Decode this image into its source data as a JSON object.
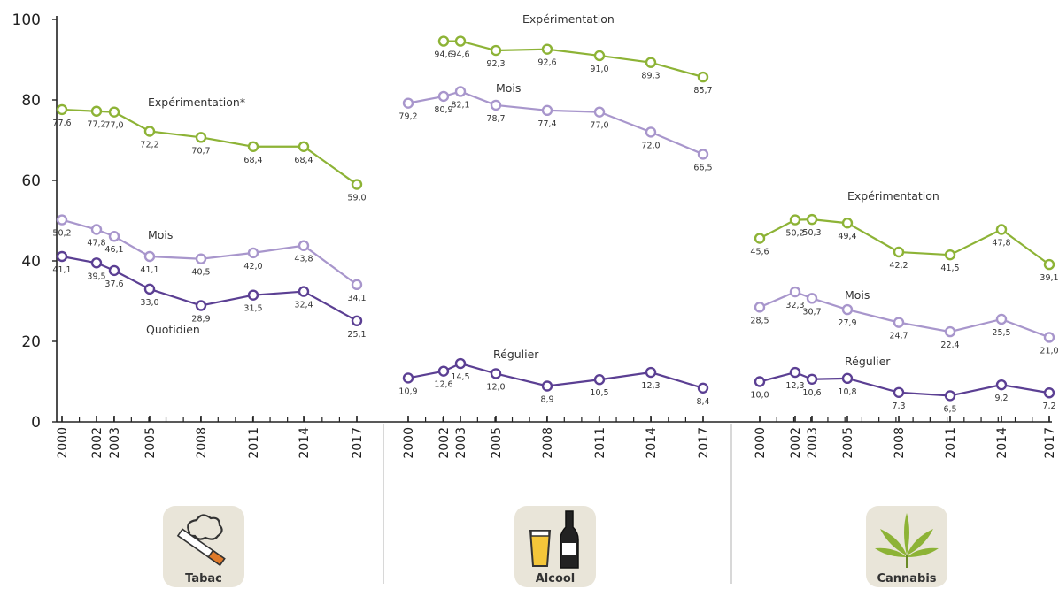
{
  "chart_data": {
    "type": "line",
    "ylim": [
      0,
      100
    ],
    "yticks": [
      0,
      20,
      40,
      60,
      80,
      100
    ],
    "x": [
      "2000",
      "2002",
      "2003",
      "2005",
      "2008",
      "2011",
      "2014",
      "2017"
    ],
    "colors": {
      "green": "#8db336",
      "lightpurple": "#a896cc",
      "darkpurple": "#5b3f93"
    },
    "panels": [
      {
        "category": "Tabac",
        "icon": "cigarette-icon",
        "series": [
          {
            "name": "Expérimentation*",
            "color": "green",
            "values": [
              77.6,
              77.2,
              77.0,
              72.2,
              70.7,
              68.4,
              68.4,
              59.0
            ],
            "labels": [
              "77,6",
              "77,2",
              "77,0",
              "72,2",
              "70,7",
              "68,4",
              "68,4",
              "59,0"
            ]
          },
          {
            "name": "Mois",
            "color": "lightpurple",
            "values": [
              50.2,
              47.8,
              46.1,
              41.1,
              40.5,
              42.0,
              43.8,
              34.1
            ],
            "labels": [
              "50,2",
              "47,8",
              "46,1",
              "41,1",
              "40,5",
              "42,0",
              "43,8",
              "34,1"
            ]
          },
          {
            "name": "Quotidien",
            "color": "darkpurple",
            "values": [
              41.1,
              39.5,
              37.6,
              33.0,
              28.9,
              31.5,
              32.4,
              25.1
            ],
            "labels": [
              "41,1",
              "39,5",
              "37,6",
              "33,0",
              "28,9",
              "31,5",
              "32,4",
              "25,1"
            ]
          }
        ]
      },
      {
        "category": "Alcool",
        "icon": "beer-bottle-icon",
        "series": [
          {
            "name": "Expérimentation",
            "color": "green",
            "values": [
              null,
              94.6,
              94.6,
              92.3,
              92.6,
              91.0,
              89.3,
              85.7
            ],
            "labels": [
              "",
              "94,6",
              "94,6",
              "92,3",
              "92,6",
              "91,0",
              "89,3",
              "85,7"
            ]
          },
          {
            "name": "Mois",
            "color": "lightpurple",
            "values": [
              79.2,
              80.9,
              82.1,
              78.7,
              77.4,
              77.0,
              72.0,
              66.5
            ],
            "labels": [
              "79,2",
              "80,9",
              "82,1",
              "78,7",
              "77,4",
              "77,0",
              "72,0",
              "66,5"
            ]
          },
          {
            "name": "Régulier",
            "color": "darkpurple",
            "values": [
              10.9,
              12.6,
              14.5,
              12.0,
              8.9,
              10.5,
              12.3,
              8.4
            ],
            "labels": [
              "10,9",
              "12,6",
              "14,5",
              "12,0",
              "8,9",
              "10,5",
              "12,3",
              "8,4"
            ]
          }
        ]
      },
      {
        "category": "Cannabis",
        "icon": "cannabis-leaf-icon",
        "series": [
          {
            "name": "Expérimentation",
            "color": "green",
            "values": [
              45.6,
              50.2,
              50.3,
              49.4,
              42.2,
              41.5,
              47.8,
              39.1
            ],
            "labels": [
              "45,6",
              "50,2",
              "50,3",
              "49,4",
              "42,2",
              "41,5",
              "47,8",
              "39,1"
            ]
          },
          {
            "name": "Mois",
            "color": "lightpurple",
            "values": [
              28.5,
              32.3,
              30.7,
              27.9,
              24.7,
              22.4,
              25.5,
              21.0
            ],
            "labels": [
              "28,5",
              "32,3",
              "30,7",
              "27,9",
              "24,7",
              "22,4",
              "25,5",
              "21,0"
            ]
          },
          {
            "name": "Régulier",
            "color": "darkpurple",
            "values": [
              10.0,
              12.3,
              10.6,
              10.8,
              7.3,
              6.5,
              9.2,
              7.2
            ],
            "labels": [
              "10,0",
              "12,3",
              "10,6",
              "10,8",
              "7,3",
              "6,5",
              "9,2",
              "7,2"
            ]
          }
        ]
      }
    ]
  }
}
